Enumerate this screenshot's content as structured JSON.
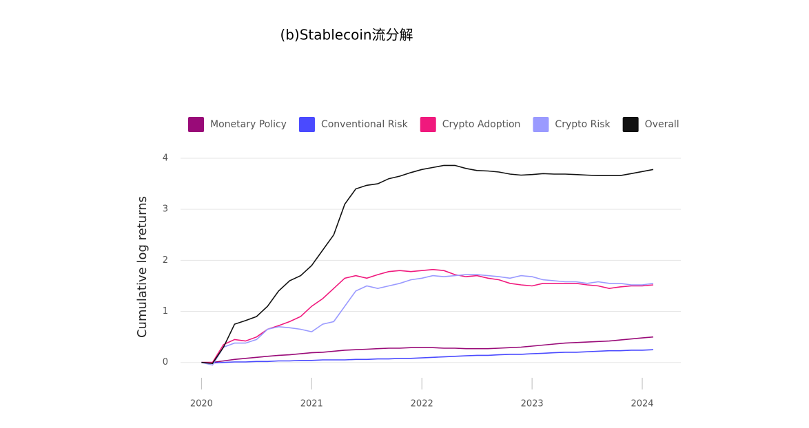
{
  "chart_data": {
    "type": "line",
    "title": "(b)Stablecoin流分解",
    "y_label": "Cumulative log returns",
    "x": [
      2020,
      2020.1,
      2020.2,
      2020.3,
      2020.4,
      2020.5,
      2020.6,
      2020.7,
      2020.8,
      2020.9,
      2021,
      2021.1,
      2021.2,
      2021.3,
      2021.4,
      2021.5,
      2021.6,
      2021.7,
      2021.8,
      2021.9,
      2022,
      2022.1,
      2022.2,
      2022.3,
      2022.4,
      2022.5,
      2022.6,
      2022.7,
      2022.8,
      2022.9,
      2023,
      2023.1,
      2023.2,
      2023.3,
      2023.4,
      2023.5,
      2023.6,
      2023.7,
      2023.8,
      2023.9,
      2024,
      2024.1
    ],
    "series": [
      {
        "name": "Monetary Policy",
        "color": "#990a78",
        "values": [
          0,
          0,
          0.03,
          0.06,
          0.08,
          0.1,
          0.12,
          0.14,
          0.15,
          0.17,
          0.19,
          0.2,
          0.22,
          0.24,
          0.25,
          0.26,
          0.27,
          0.28,
          0.28,
          0.29,
          0.29,
          0.29,
          0.28,
          0.28,
          0.27,
          0.27,
          0.27,
          0.28,
          0.29,
          0.3,
          0.32,
          0.34,
          0.36,
          0.38,
          0.39,
          0.4,
          0.41,
          0.42,
          0.44,
          0.46,
          0.48,
          0.5
        ]
      },
      {
        "name": "Conventional Risk",
        "color": "#4a4aff",
        "values": [
          0,
          -0.01,
          0,
          0.01,
          0.01,
          0.02,
          0.02,
          0.03,
          0.03,
          0.04,
          0.04,
          0.05,
          0.05,
          0.05,
          0.06,
          0.06,
          0.07,
          0.07,
          0.08,
          0.08,
          0.09,
          0.1,
          0.11,
          0.12,
          0.13,
          0.14,
          0.14,
          0.15,
          0.16,
          0.16,
          0.17,
          0.18,
          0.19,
          0.2,
          0.2,
          0.21,
          0.22,
          0.23,
          0.23,
          0.24,
          0.24,
          0.25
        ]
      },
      {
        "name": "Crypto Adoption",
        "color": "#f0197d",
        "values": [
          0,
          0,
          0.35,
          0.45,
          0.42,
          0.5,
          0.65,
          0.72,
          0.8,
          0.9,
          1.1,
          1.25,
          1.45,
          1.65,
          1.7,
          1.65,
          1.72,
          1.78,
          1.8,
          1.78,
          1.8,
          1.82,
          1.8,
          1.72,
          1.68,
          1.7,
          1.65,
          1.62,
          1.55,
          1.52,
          1.5,
          1.55,
          1.55,
          1.55,
          1.55,
          1.52,
          1.5,
          1.45,
          1.48,
          1.5,
          1.5,
          1.52
        ]
      },
      {
        "name": "Crypto Risk",
        "color": "#9a9aff",
        "values": [
          0,
          -0.05,
          0.3,
          0.38,
          0.38,
          0.45,
          0.65,
          0.7,
          0.68,
          0.65,
          0.6,
          0.75,
          0.8,
          1.1,
          1.4,
          1.5,
          1.45,
          1.5,
          1.55,
          1.62,
          1.65,
          1.7,
          1.68,
          1.7,
          1.72,
          1.72,
          1.7,
          1.68,
          1.65,
          1.7,
          1.68,
          1.62,
          1.6,
          1.58,
          1.58,
          1.55,
          1.58,
          1.55,
          1.55,
          1.52,
          1.52,
          1.55
        ]
      },
      {
        "name": "Overall",
        "color": "#111111",
        "values": [
          0,
          -0.02,
          0.3,
          0.75,
          0.82,
          0.9,
          1.1,
          1.4,
          1.6,
          1.7,
          1.9,
          2.2,
          2.5,
          3.1,
          3.4,
          3.47,
          3.5,
          3.6,
          3.65,
          3.72,
          3.78,
          3.82,
          3.86,
          3.86,
          3.8,
          3.76,
          3.75,
          3.73,
          3.69,
          3.67,
          3.68,
          3.7,
          3.69,
          3.69,
          3.68,
          3.67,
          3.66,
          3.66,
          3.66,
          3.7,
          3.74,
          3.78
        ]
      }
    ],
    "xlim": [
      2019.81,
      2024.35
    ],
    "xticks": [
      2020,
      2021,
      2022,
      2023,
      2024
    ],
    "ylim": [
      -0.3,
      4
    ],
    "yticks": [
      0,
      1,
      2,
      3,
      4
    ],
    "grid": true
  }
}
